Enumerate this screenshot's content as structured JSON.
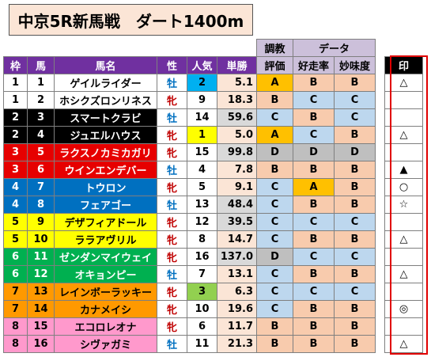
{
  "title": "中京5R新馬戦　ダート1400m",
  "headers": {
    "waku": "枠",
    "uma": "馬",
    "name": "馬名",
    "sex": "性",
    "pop": "人気",
    "odds": "単勝",
    "training": "調教評価",
    "training_top": "調教",
    "training_bottom": "評価",
    "data_group": "データ",
    "kousou": "好走率",
    "myoumi": "妙味度",
    "mark": "印"
  },
  "colors": {
    "waku": {
      "1": "#ffffff",
      "2": "#000000",
      "3": "#e60000",
      "4": "#0070c0",
      "5": "#ffff00",
      "6": "#00b050",
      "7": "#ff9900",
      "8": "#ff99cc"
    },
    "waku_text": {
      "1": "#000000",
      "2": "#ffffff",
      "3": "#ffffff",
      "4": "#ffffff",
      "5": "#000000",
      "6": "#ffffff",
      "7": "#000000",
      "8": "#000000"
    },
    "pop": {
      "1": "#ffff00",
      "2": "#00b0f0",
      "3": "#92d050"
    },
    "grade": {
      "A": "#ffc000",
      "B": "#f8cbad",
      "C": "#bdd7ee",
      "D": "#bfbfbf"
    },
    "odds_top": "#fbe5d6",
    "odds_high": "#d9d9d9"
  },
  "rows": [
    {
      "waku": "1",
      "uma": "1",
      "name": "ゲイルライダー",
      "sex": "牡",
      "pop": "2",
      "odds": "5.1",
      "training": "A",
      "kousou": "B",
      "myoumi": "B",
      "mark": "△"
    },
    {
      "waku": "1",
      "uma": "2",
      "name": "ホシクズロンリネス",
      "sex": "牝",
      "pop": "9",
      "odds": "18.3",
      "training": "B",
      "kousou": "C",
      "myoumi": "C",
      "mark": ""
    },
    {
      "waku": "2",
      "uma": "3",
      "name": "スマートクラビ",
      "sex": "牡",
      "pop": "14",
      "odds": "59.6",
      "training": "C",
      "kousou": "B",
      "myoumi": "C",
      "mark": ""
    },
    {
      "waku": "2",
      "uma": "4",
      "name": "ジュエルハウス",
      "sex": "牝",
      "pop": "1",
      "odds": "5.0",
      "training": "A",
      "kousou": "C",
      "myoumi": "B",
      "mark": "△"
    },
    {
      "waku": "3",
      "uma": "5",
      "name": "ラクスノカミカガリ",
      "sex": "牝",
      "pop": "15",
      "odds": "99.8",
      "training": "D",
      "kousou": "D",
      "myoumi": "D",
      "mark": ""
    },
    {
      "waku": "3",
      "uma": "6",
      "name": "ウインエンデバー",
      "sex": "牡",
      "pop": "4",
      "odds": "7.8",
      "training": "B",
      "kousou": "B",
      "myoumi": "B",
      "mark": "▲"
    },
    {
      "waku": "4",
      "uma": "7",
      "name": "トウロン",
      "sex": "牝",
      "pop": "5",
      "odds": "9.1",
      "training": "C",
      "kousou": "A",
      "myoumi": "B",
      "mark": "○"
    },
    {
      "waku": "4",
      "uma": "8",
      "name": "フェアゴー",
      "sex": "牡",
      "pop": "13",
      "odds": "48.4",
      "training": "C",
      "kousou": "B",
      "myoumi": "B",
      "mark": "☆"
    },
    {
      "waku": "5",
      "uma": "9",
      "name": "デザフィアドール",
      "sex": "牝",
      "pop": "12",
      "odds": "39.5",
      "training": "C",
      "kousou": "C",
      "myoumi": "C",
      "mark": ""
    },
    {
      "waku": "5",
      "uma": "10",
      "name": "ララアヴリル",
      "sex": "牝",
      "pop": "8",
      "odds": "14.7",
      "training": "C",
      "kousou": "B",
      "myoumi": "B",
      "mark": "△"
    },
    {
      "waku": "6",
      "uma": "11",
      "name": "ゼンダンマイウェイ",
      "sex": "牝",
      "pop": "16",
      "odds": "137.0",
      "training": "D",
      "kousou": "C",
      "myoumi": "C",
      "mark": ""
    },
    {
      "waku": "6",
      "uma": "12",
      "name": "オキョンピー",
      "sex": "牡",
      "pop": "7",
      "odds": "13.1",
      "training": "C",
      "kousou": "B",
      "myoumi": "B",
      "mark": "△"
    },
    {
      "waku": "7",
      "uma": "13",
      "name": "レインボーラッキー",
      "sex": "牝",
      "pop": "3",
      "odds": "6.3",
      "training": "C",
      "kousou": "C",
      "myoumi": "C",
      "mark": ""
    },
    {
      "waku": "7",
      "uma": "14",
      "name": "カナメイシ",
      "sex": "牝",
      "pop": "10",
      "odds": "19.6",
      "training": "C",
      "kousou": "B",
      "myoumi": "B",
      "mark": "◎"
    },
    {
      "waku": "8",
      "uma": "15",
      "name": "エコロレオナ",
      "sex": "牝",
      "pop": "6",
      "odds": "11.7",
      "training": "B",
      "kousou": "B",
      "myoumi": "B",
      "mark": ""
    },
    {
      "waku": "8",
      "uma": "16",
      "name": "シヴァガミ",
      "sex": "牡",
      "pop": "11",
      "odds": "21.3",
      "training": "B",
      "kousou": "B",
      "myoumi": "B",
      "mark": "△"
    }
  ]
}
